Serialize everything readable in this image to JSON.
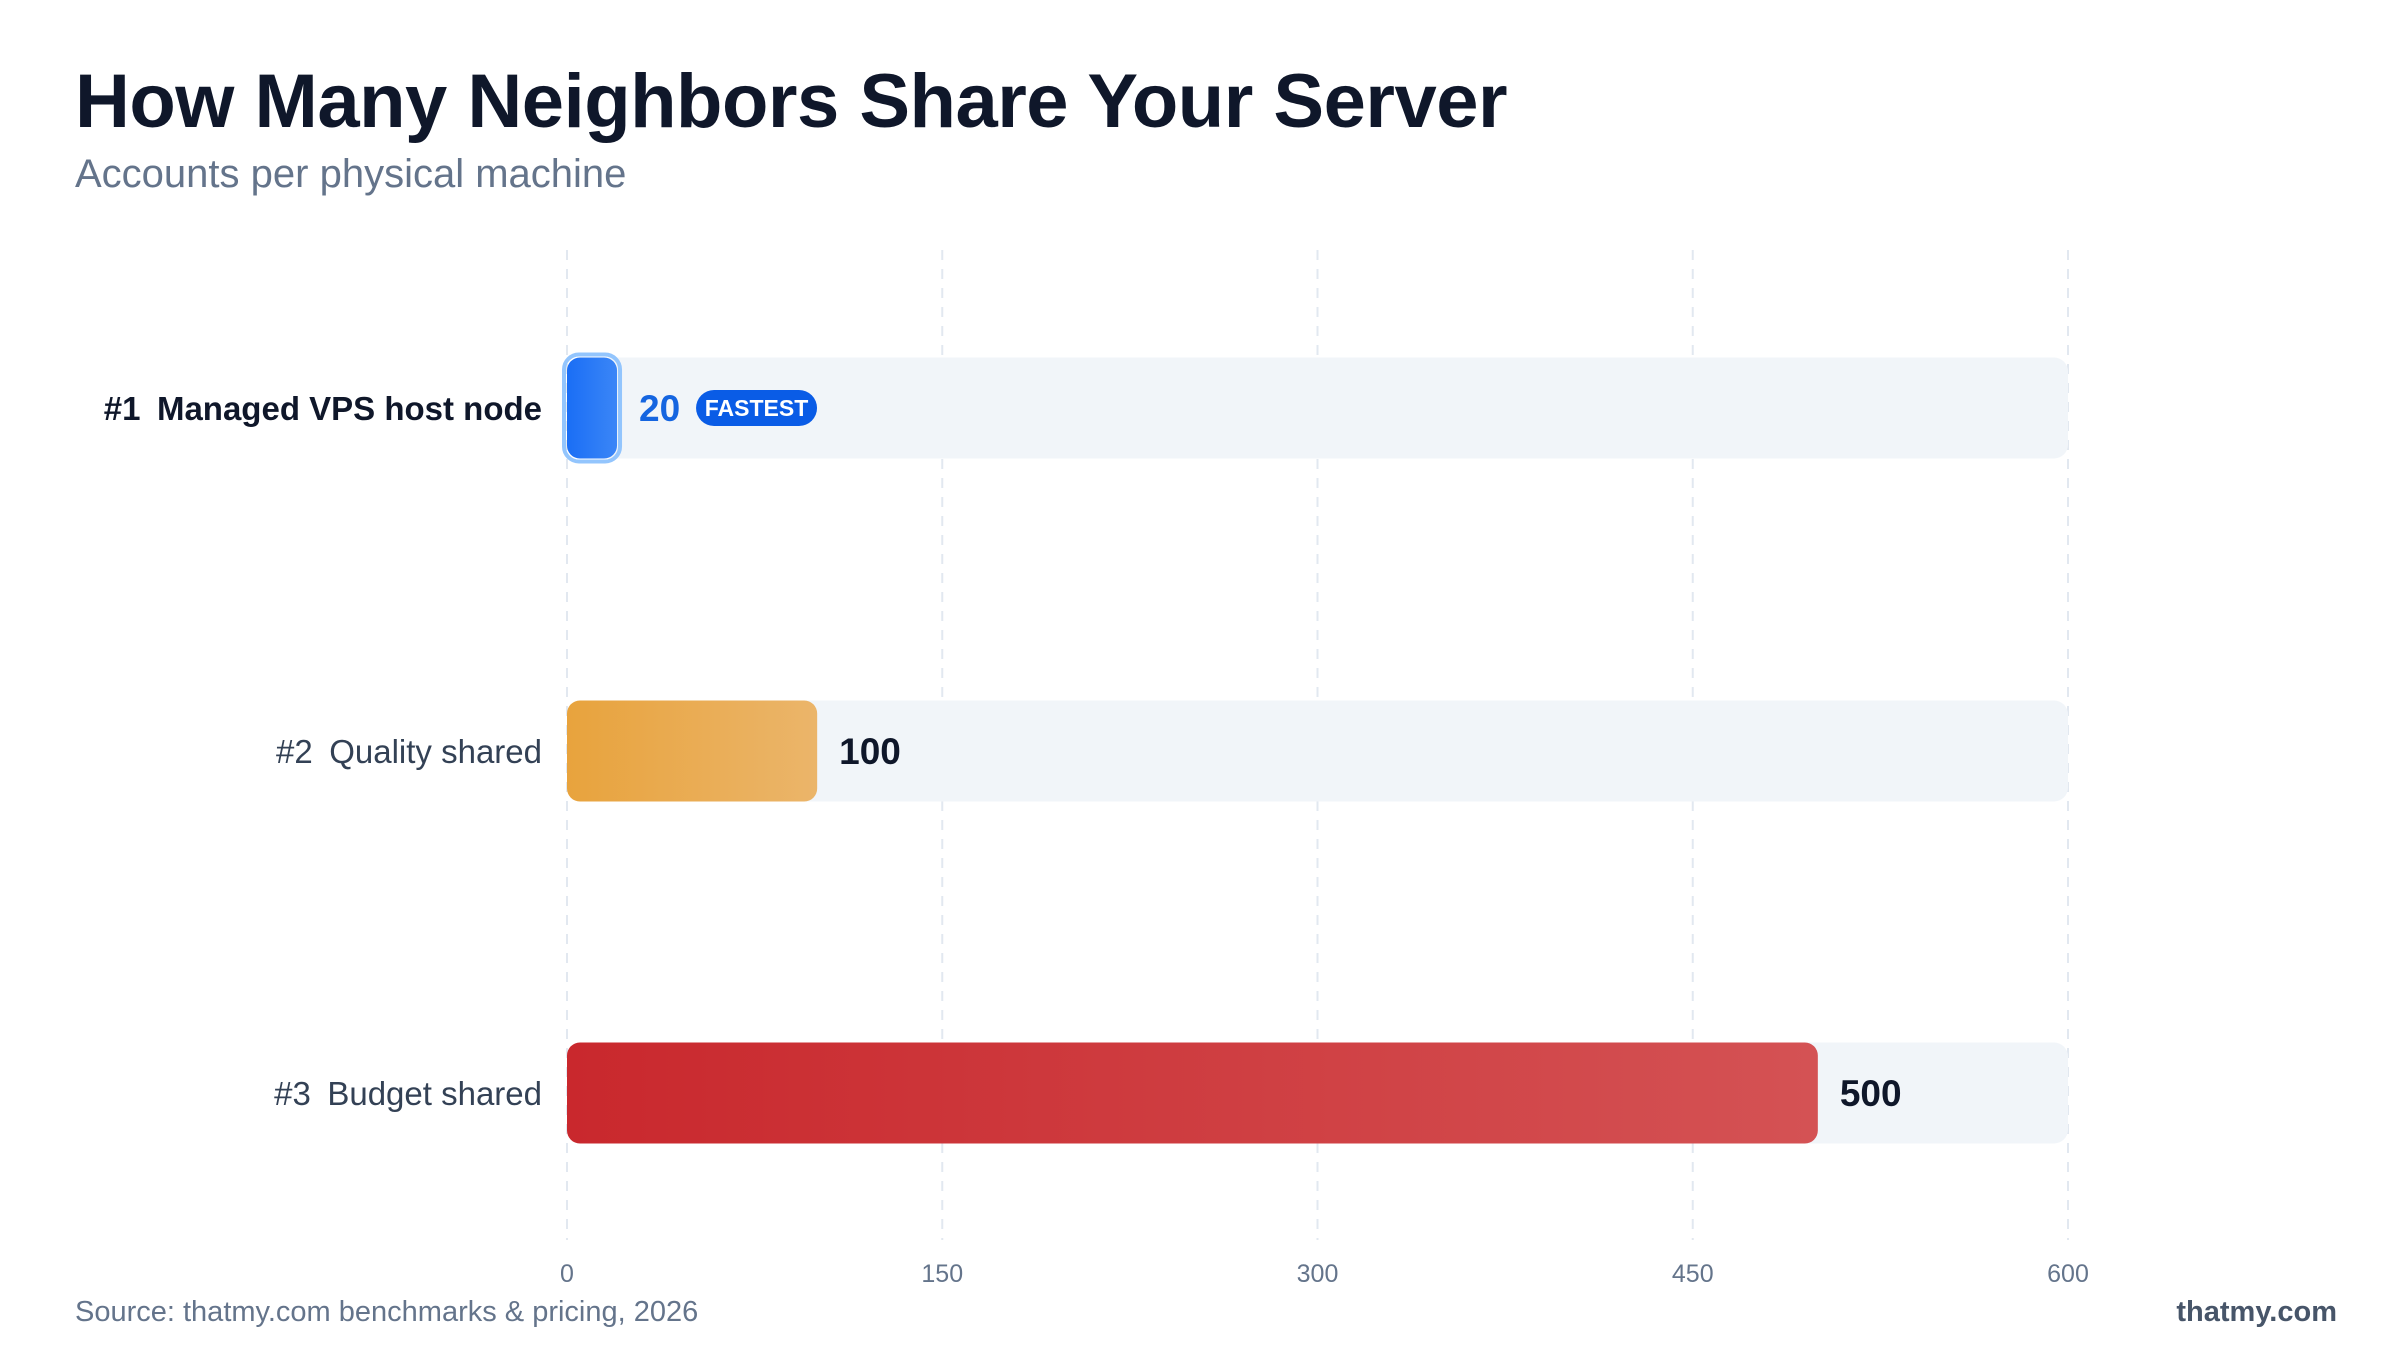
{
  "header": {
    "title": "How Many Neighbors Share Your Server",
    "subtitle": "Accounts per physical machine"
  },
  "footer": {
    "source": "Source: thatmy.com benchmarks & pricing, 2026",
    "brand": "thatmy.com"
  },
  "chart_data": {
    "type": "bar",
    "orientation": "horizontal",
    "title": "How Many Neighbors Share Your Server",
    "subtitle": "Accounts per physical machine",
    "categories": [
      "Managed VPS host node",
      "Quality shared",
      "Budget shared"
    ],
    "ranks": [
      "#1",
      "#2",
      "#3"
    ],
    "values": [
      20,
      100,
      500
    ],
    "value_labels": [
      "20",
      "100",
      "500"
    ],
    "badges": [
      "FASTEST",
      "",
      ""
    ],
    "bar_colors": [
      "#1a6ef5",
      "#e8a33d",
      "#c9282d"
    ],
    "value_label_colors": [
      "#1565e0",
      "#0f172a",
      "#0f172a"
    ],
    "badge_color": "#0a5ce6",
    "track_color": "#f1f5f9",
    "xlim": [
      0,
      600
    ],
    "xticks": [
      0,
      150,
      300,
      450,
      600
    ],
    "xtick_labels": [
      "0",
      "150",
      "300",
      "450",
      "600"
    ],
    "grid": "vertical dashed",
    "legend": "none"
  }
}
